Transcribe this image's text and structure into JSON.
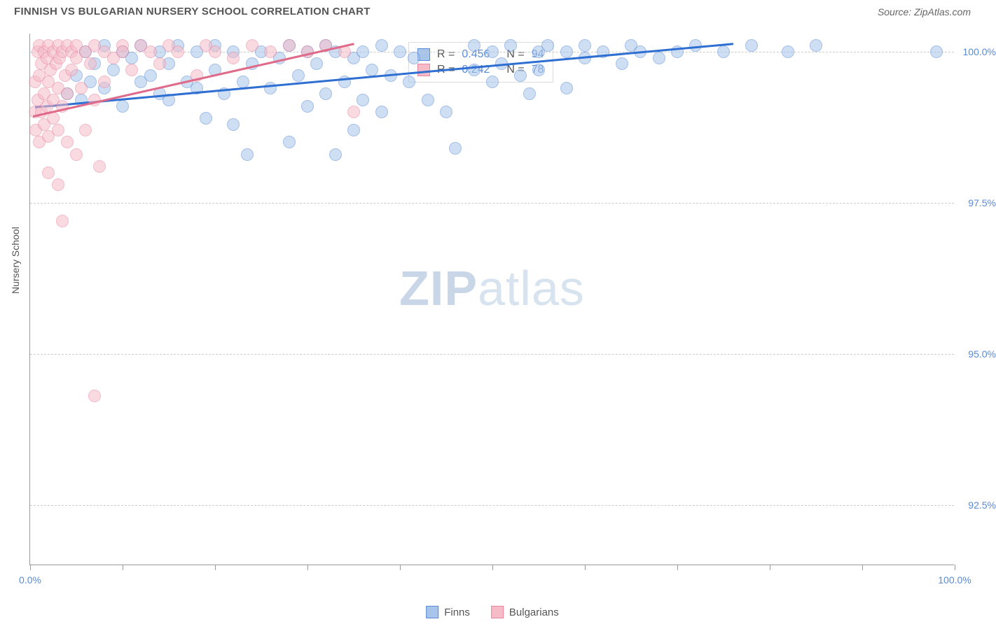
{
  "title": "FINNISH VS BULGARIAN NURSERY SCHOOL CORRELATION CHART",
  "source": "Source: ZipAtlas.com",
  "ylabel": "Nursery School",
  "watermark_bold": "ZIP",
  "watermark_rest": "atlas",
  "chart": {
    "type": "scatter",
    "xlim": [
      0,
      100
    ],
    "ylim": [
      91.5,
      100.3
    ],
    "xticks": [
      0,
      10,
      20,
      30,
      40,
      50,
      60,
      70,
      80,
      90,
      100
    ],
    "xtick_labels": {
      "0": "0.0%",
      "100": "100.0%"
    },
    "yticks": [
      92.5,
      95.0,
      97.5,
      100.0
    ],
    "ytick_labels": [
      "92.5%",
      "95.0%",
      "97.5%",
      "100.0%"
    ],
    "background_color": "#ffffff",
    "grid_color": "#cccccc",
    "axis_color": "#999999",
    "tick_label_color": "#5a8bd6",
    "marker_radius": 9,
    "marker_opacity": 0.55,
    "series": [
      {
        "name": "Finns",
        "color_fill": "#a7c5ea",
        "color_stroke": "#5a8bd6",
        "trend_color": "#2e6fd1",
        "trend_width": 2.5,
        "R": "0.456",
        "N": "94",
        "trend_x1": 0.5,
        "trend_y1": 99.1,
        "trend_x2": 76,
        "trend_y2": 100.15,
        "points": [
          [
            4,
            99.3
          ],
          [
            5,
            99.6
          ],
          [
            5.5,
            99.2
          ],
          [
            6,
            100
          ],
          [
            6.5,
            99.5
          ],
          [
            7,
            99.8
          ],
          [
            8,
            100.1
          ],
          [
            8,
            99.4
          ],
          [
            9,
            99.7
          ],
          [
            10,
            100
          ],
          [
            10,
            99.1
          ],
          [
            11,
            99.9
          ],
          [
            12,
            99.5
          ],
          [
            12,
            100.1
          ],
          [
            13,
            99.6
          ],
          [
            14,
            100
          ],
          [
            14,
            99.3
          ],
          [
            15,
            99.8
          ],
          [
            15,
            99.2
          ],
          [
            16,
            100.1
          ],
          [
            17,
            99.5
          ],
          [
            18,
            100
          ],
          [
            18,
            99.4
          ],
          [
            19,
            98.9
          ],
          [
            20,
            99.7
          ],
          [
            20,
            100.1
          ],
          [
            21,
            99.3
          ],
          [
            22,
            100
          ],
          [
            22,
            98.8
          ],
          [
            23,
            99.5
          ],
          [
            23.5,
            98.3
          ],
          [
            24,
            99.8
          ],
          [
            25,
            100
          ],
          [
            26,
            99.4
          ],
          [
            27,
            99.9
          ],
          [
            28,
            100.1
          ],
          [
            28,
            98.5
          ],
          [
            29,
            99.6
          ],
          [
            30,
            100
          ],
          [
            30,
            99.1
          ],
          [
            31,
            99.8
          ],
          [
            32,
            100.1
          ],
          [
            32,
            99.3
          ],
          [
            33,
            100
          ],
          [
            33,
            98.3
          ],
          [
            34,
            99.5
          ],
          [
            35,
            99.9
          ],
          [
            35,
            98.7
          ],
          [
            36,
            100
          ],
          [
            36,
            99.2
          ],
          [
            37,
            99.7
          ],
          [
            38,
            100.1
          ],
          [
            38,
            99.0
          ],
          [
            39,
            99.6
          ],
          [
            40,
            100
          ],
          [
            41,
            99.5
          ],
          [
            41.5,
            99.9
          ],
          [
            43,
            99.2
          ],
          [
            45,
            99.0
          ],
          [
            46,
            98.4
          ],
          [
            48,
            99.7
          ],
          [
            48,
            100.1
          ],
          [
            50,
            100
          ],
          [
            50,
            99.5
          ],
          [
            51,
            99.8
          ],
          [
            52,
            100.1
          ],
          [
            53,
            99.6
          ],
          [
            54,
            99.3
          ],
          [
            55,
            100
          ],
          [
            55,
            99.7
          ],
          [
            56,
            100.1
          ],
          [
            58,
            100
          ],
          [
            58,
            99.4
          ],
          [
            60,
            99.9
          ],
          [
            60,
            100.1
          ],
          [
            62,
            100
          ],
          [
            64,
            99.8
          ],
          [
            65,
            100.1
          ],
          [
            66,
            100
          ],
          [
            68,
            99.9
          ],
          [
            70,
            100
          ],
          [
            72,
            100.1
          ],
          [
            75,
            100
          ],
          [
            78,
            100.1
          ],
          [
            82,
            100
          ],
          [
            85,
            100.1
          ],
          [
            98,
            100
          ]
        ]
      },
      {
        "name": "Bulgarians",
        "color_fill": "#f5bcc8",
        "color_stroke": "#e985a0",
        "trend_color": "#e06a8a",
        "trend_width": 2.5,
        "R": "0.242",
        "N": "78",
        "trend_x1": 0.3,
        "trend_y1": 98.95,
        "trend_x2": 35,
        "trend_y2": 100.15,
        "points": [
          [
            0.5,
            99.0
          ],
          [
            0.5,
            99.5
          ],
          [
            0.6,
            98.7
          ],
          [
            0.8,
            100
          ],
          [
            0.8,
            99.2
          ],
          [
            1,
            100.1
          ],
          [
            1,
            99.6
          ],
          [
            1,
            98.5
          ],
          [
            1.2,
            99.8
          ],
          [
            1.2,
            99.0
          ],
          [
            1.5,
            100
          ],
          [
            1.5,
            99.3
          ],
          [
            1.5,
            98.8
          ],
          [
            1.8,
            99.9
          ],
          [
            1.8,
            99.1
          ],
          [
            2,
            100.1
          ],
          [
            2,
            99.5
          ],
          [
            2,
            98.6
          ],
          [
            2,
            98.0
          ],
          [
            2.2,
            99.7
          ],
          [
            2.5,
            100
          ],
          [
            2.5,
            99.2
          ],
          [
            2.5,
            98.9
          ],
          [
            2.8,
            99.8
          ],
          [
            3,
            100.1
          ],
          [
            3,
            99.4
          ],
          [
            3,
            98.7
          ],
          [
            3,
            97.8
          ],
          [
            3.2,
            99.9
          ],
          [
            3.5,
            100
          ],
          [
            3.5,
            99.1
          ],
          [
            3.5,
            97.2
          ],
          [
            3.8,
            99.6
          ],
          [
            4,
            100.1
          ],
          [
            4,
            99.3
          ],
          [
            4,
            98.5
          ],
          [
            4.5,
            100
          ],
          [
            4.5,
            99.7
          ],
          [
            5,
            98.3
          ],
          [
            5,
            99.9
          ],
          [
            5,
            100.1
          ],
          [
            5.5,
            99.4
          ],
          [
            6,
            100
          ],
          [
            6,
            98.7
          ],
          [
            6.5,
            99.8
          ],
          [
            7,
            100.1
          ],
          [
            7,
            99.2
          ],
          [
            7,
            94.3
          ],
          [
            7.5,
            98.1
          ],
          [
            8,
            100
          ],
          [
            8,
            99.5
          ],
          [
            9,
            99.9
          ],
          [
            10,
            100.1
          ],
          [
            10,
            100
          ],
          [
            11,
            99.7
          ],
          [
            12,
            100.1
          ],
          [
            13,
            100
          ],
          [
            14,
            99.8
          ],
          [
            15,
            100.1
          ],
          [
            16,
            100
          ],
          [
            18,
            99.6
          ],
          [
            19,
            100.1
          ],
          [
            20,
            100
          ],
          [
            22,
            99.9
          ],
          [
            24,
            100.1
          ],
          [
            26,
            100
          ],
          [
            28,
            100.1
          ],
          [
            30,
            100
          ],
          [
            32,
            100.1
          ],
          [
            34,
            100
          ],
          [
            35,
            99.0
          ]
        ]
      }
    ]
  },
  "statbox": {
    "r_label": "R =",
    "n_label": "N ="
  },
  "legend": {
    "items": [
      "Finns",
      "Bulgarians"
    ]
  }
}
